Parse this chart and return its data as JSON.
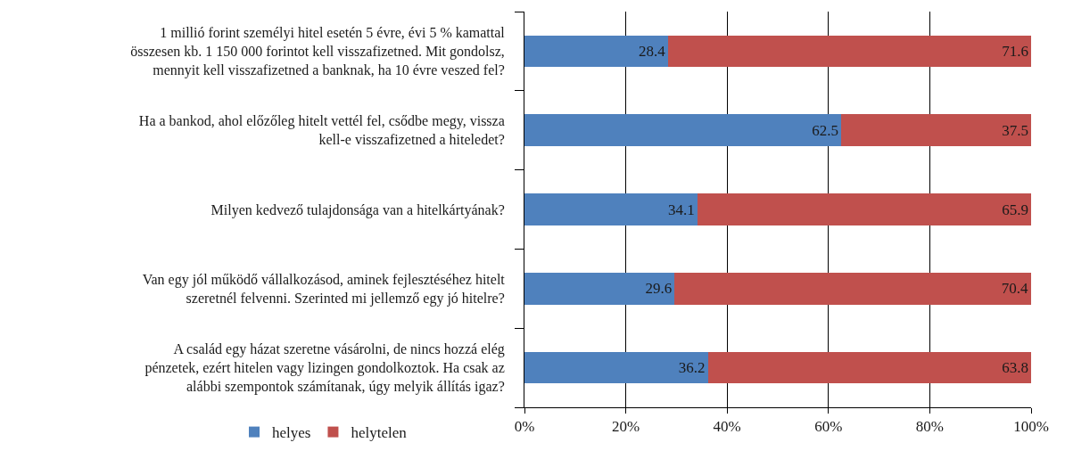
{
  "chart_data": {
    "type": "bar",
    "orientation": "horizontal",
    "stacked": true,
    "categories": [
      "1 millió forint személyi hitel esetén 5 évre, évi 5 % kamattal összesen kb. 1 150 000 forintot kell visszafizetned. Mit gondolsz, mennyit kell visszafizetned a banknak, ha 10 évre veszed fel?",
      "Ha a bankod, ahol előzőleg hitelt vettél fel, csődbe megy, vissza kell-e visszafizetned a hiteledet?",
      "Milyen kedvező tulajdonsága van a hitelkártyának?",
      "Van egy jól működő vállalkozásod, aminek fejlesztéséhez hitelt szeretnél felvenni. Szerinted mi jellemző egy jó hitelre?",
      "A család egy házat szeretne vásárolni, de nincs hozzá elég pénzetek, ezért hitelen vagy lizingen gondolkoztok. Ha csak az alábbi szempontok számítanak, úgy melyik állítás igaz?"
    ],
    "series": [
      {
        "name": "helyes",
        "color": "#4f81bd",
        "values": [
          28.4,
          62.5,
          34.1,
          29.6,
          36.2
        ]
      },
      {
        "name": "helytelen",
        "color": "#c0504d",
        "values": [
          71.6,
          37.5,
          65.9,
          70.4,
          63.8
        ]
      }
    ],
    "xlim": [
      0,
      100
    ],
    "xticks": [
      {
        "value": 0,
        "label": "0%"
      },
      {
        "value": 20,
        "label": "20%"
      },
      {
        "value": 40,
        "label": "40%"
      },
      {
        "value": 60,
        "label": "60%"
      },
      {
        "value": 80,
        "label": "80%"
      },
      {
        "value": 100,
        "label": "100%"
      }
    ],
    "grid": "x",
    "legend": "bottom left",
    "data_labels": true
  }
}
